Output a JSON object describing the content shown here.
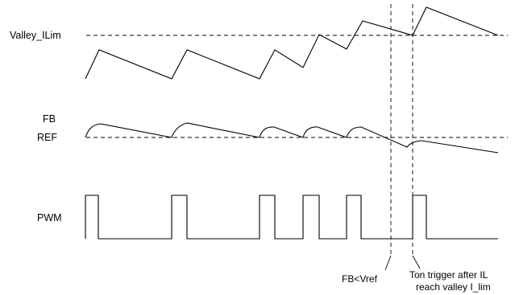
{
  "labels": {
    "valley_ilim": "Valley_ILim",
    "fb": "FB",
    "ref": "REF",
    "pwm": "PWM"
  },
  "annotations": {
    "fb_lt_vref": "FB<Vref",
    "ton_line1": "Ton trigger after IL",
    "ton_line2": "reach valley I_lim"
  }
}
